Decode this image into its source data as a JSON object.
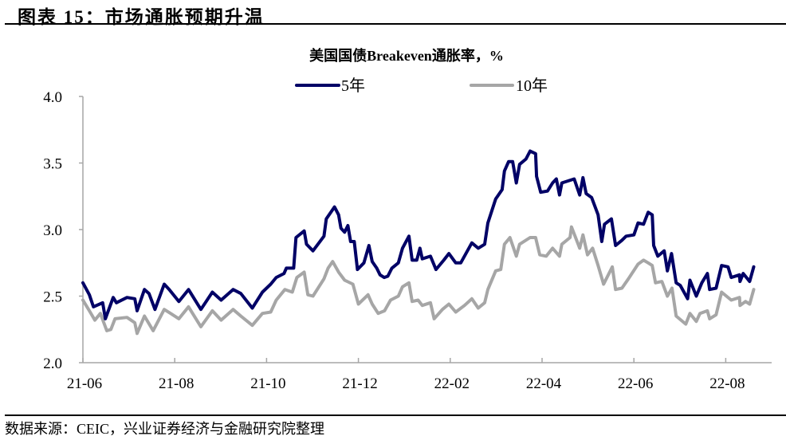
{
  "figure": {
    "title": "图表 15：市场通胀预期升温",
    "source": "数据来源：CEIC，兴业证券经济与金融研究院整理"
  },
  "chart_data": {
    "type": "line",
    "title": "美国国债Breakeven通胀率，%",
    "xlabel": "",
    "ylabel": "",
    "x_unit": "months since 2021-06",
    "xlim": [
      0,
      15
    ],
    "ylim": [
      2.0,
      4.0
    ],
    "yticks": [
      "2.0",
      "2.5",
      "3.0",
      "3.5",
      "4.0"
    ],
    "ytick_values": [
      2.0,
      2.5,
      3.0,
      3.5,
      4.0
    ],
    "xticks": [
      "21-06",
      "21-08",
      "21-10",
      "21-12",
      "22-02",
      "22-04",
      "22-06",
      "22-08"
    ],
    "xtick_values": [
      0,
      2,
      4,
      6,
      8,
      10,
      12,
      14
    ],
    "grid": false,
    "legend_placement": "top-center",
    "series": [
      {
        "name": "5年",
        "color": "#000066",
        "points": [
          [
            0,
            2.6
          ],
          [
            0.14,
            2.51
          ],
          [
            0.23,
            2.42
          ],
          [
            0.43,
            2.45
          ],
          [
            0.49,
            2.33
          ],
          [
            0.66,
            2.49
          ],
          [
            0.73,
            2.45
          ],
          [
            0.96,
            2.49
          ],
          [
            1.13,
            2.48
          ],
          [
            1.18,
            2.39
          ],
          [
            1.34,
            2.55
          ],
          [
            1.44,
            2.52
          ],
          [
            1.57,
            2.4
          ],
          [
            1.77,
            2.59
          ],
          [
            1.88,
            2.55
          ],
          [
            2.09,
            2.46
          ],
          [
            2.3,
            2.55
          ],
          [
            2.57,
            2.4
          ],
          [
            2.82,
            2.53
          ],
          [
            3.01,
            2.47
          ],
          [
            3.27,
            2.55
          ],
          [
            3.44,
            2.52
          ],
          [
            3.69,
            2.41
          ],
          [
            3.91,
            2.53
          ],
          [
            4.09,
            2.59
          ],
          [
            4.21,
            2.64
          ],
          [
            4.38,
            2.67
          ],
          [
            4.43,
            2.71
          ],
          [
            4.59,
            2.71
          ],
          [
            4.64,
            2.94
          ],
          [
            4.82,
            2.99
          ],
          [
            4.87,
            2.89
          ],
          [
            5.01,
            2.84
          ],
          [
            5.25,
            2.95
          ],
          [
            5.3,
            3.08
          ],
          [
            5.48,
            3.17
          ],
          [
            5.57,
            3.11
          ],
          [
            5.62,
            3.01
          ],
          [
            5.7,
            2.98
          ],
          [
            5.77,
            3.03
          ],
          [
            5.83,
            2.91
          ],
          [
            5.91,
            2.91
          ],
          [
            5.98,
            2.7
          ],
          [
            6.12,
            2.75
          ],
          [
            6.23,
            2.88
          ],
          [
            6.3,
            2.76
          ],
          [
            6.4,
            2.71
          ],
          [
            6.47,
            2.66
          ],
          [
            6.56,
            2.64
          ],
          [
            6.64,
            2.65
          ],
          [
            6.73,
            2.71
          ],
          [
            6.87,
            2.75
          ],
          [
            6.96,
            2.86
          ],
          [
            7.1,
            2.95
          ],
          [
            7.17,
            2.77
          ],
          [
            7.27,
            2.77
          ],
          [
            7.34,
            2.86
          ],
          [
            7.39,
            2.78
          ],
          [
            7.57,
            2.8
          ],
          [
            7.69,
            2.7
          ],
          [
            7.86,
            2.77
          ],
          [
            7.97,
            2.82
          ],
          [
            8.12,
            2.75
          ],
          [
            8.23,
            2.75
          ],
          [
            8.47,
            2.9
          ],
          [
            8.61,
            2.86
          ],
          [
            8.75,
            2.89
          ],
          [
            8.82,
            3.05
          ],
          [
            8.99,
            3.23
          ],
          [
            9.13,
            3.3
          ],
          [
            9.18,
            3.44
          ],
          [
            9.27,
            3.51
          ],
          [
            9.36,
            3.51
          ],
          [
            9.44,
            3.35
          ],
          [
            9.51,
            3.49
          ],
          [
            9.65,
            3.53
          ],
          [
            9.74,
            3.59
          ],
          [
            9.86,
            3.57
          ],
          [
            9.88,
            3.4
          ],
          [
            9.97,
            3.28
          ],
          [
            10.12,
            3.29
          ],
          [
            10.23,
            3.35
          ],
          [
            10.31,
            3.38
          ],
          [
            10.38,
            3.26
          ],
          [
            10.43,
            3.35
          ],
          [
            10.7,
            3.38
          ],
          [
            10.82,
            3.26
          ],
          [
            10.89,
            3.39
          ],
          [
            10.96,
            3.27
          ],
          [
            11.08,
            3.24
          ],
          [
            11.22,
            3.11
          ],
          [
            11.3,
            2.91
          ],
          [
            11.36,
            3.04
          ],
          [
            11.51,
            3.08
          ],
          [
            11.6,
            2.88
          ],
          [
            11.74,
            2.92
          ],
          [
            11.83,
            2.95
          ],
          [
            12.0,
            2.96
          ],
          [
            12.09,
            3.05
          ],
          [
            12.21,
            3.04
          ],
          [
            12.31,
            3.13
          ],
          [
            12.4,
            3.11
          ],
          [
            12.43,
            2.88
          ],
          [
            12.52,
            2.8
          ],
          [
            12.66,
            2.84
          ],
          [
            12.73,
            2.69
          ],
          [
            12.82,
            2.82
          ],
          [
            12.92,
            2.6
          ],
          [
            13.01,
            2.58
          ],
          [
            13.17,
            2.48
          ],
          [
            13.22,
            2.62
          ],
          [
            13.36,
            2.5
          ],
          [
            13.48,
            2.6
          ],
          [
            13.6,
            2.67
          ],
          [
            13.65,
            2.55
          ],
          [
            13.79,
            2.56
          ],
          [
            13.91,
            2.73
          ],
          [
            14.05,
            2.72
          ],
          [
            14.12,
            2.64
          ],
          [
            14.3,
            2.66
          ],
          [
            14.31,
            2.61
          ],
          [
            14.38,
            2.67
          ],
          [
            14.52,
            2.61
          ],
          [
            14.61,
            2.72
          ]
        ]
      },
      {
        "name": "10年",
        "color": "#a6a6a6",
        "points": [
          [
            0,
            2.47
          ],
          [
            0.14,
            2.39
          ],
          [
            0.26,
            2.32
          ],
          [
            0.38,
            2.37
          ],
          [
            0.52,
            2.24
          ],
          [
            0.61,
            2.25
          ],
          [
            0.7,
            2.33
          ],
          [
            0.96,
            2.34
          ],
          [
            1.13,
            2.3
          ],
          [
            1.18,
            2.22
          ],
          [
            1.34,
            2.35
          ],
          [
            1.53,
            2.24
          ],
          [
            1.77,
            2.4
          ],
          [
            1.91,
            2.37
          ],
          [
            2.09,
            2.33
          ],
          [
            2.3,
            2.42
          ],
          [
            2.57,
            2.27
          ],
          [
            2.82,
            2.39
          ],
          [
            3.01,
            2.32
          ],
          [
            3.27,
            2.4
          ],
          [
            3.44,
            2.35
          ],
          [
            3.69,
            2.28
          ],
          [
            3.91,
            2.37
          ],
          [
            4.09,
            2.38
          ],
          [
            4.21,
            2.47
          ],
          [
            4.4,
            2.55
          ],
          [
            4.56,
            2.53
          ],
          [
            4.66,
            2.64
          ],
          [
            4.82,
            2.68
          ],
          [
            4.9,
            2.51
          ],
          [
            5.01,
            2.5
          ],
          [
            5.25,
            2.63
          ],
          [
            5.34,
            2.71
          ],
          [
            5.44,
            2.76
          ],
          [
            5.57,
            2.68
          ],
          [
            5.7,
            2.62
          ],
          [
            5.88,
            2.59
          ],
          [
            6.0,
            2.44
          ],
          [
            6.21,
            2.51
          ],
          [
            6.3,
            2.44
          ],
          [
            6.43,
            2.37
          ],
          [
            6.57,
            2.39
          ],
          [
            6.7,
            2.47
          ],
          [
            6.87,
            2.5
          ],
          [
            6.96,
            2.57
          ],
          [
            7.1,
            2.6
          ],
          [
            7.17,
            2.46
          ],
          [
            7.3,
            2.47
          ],
          [
            7.39,
            2.43
          ],
          [
            7.57,
            2.45
          ],
          [
            7.65,
            2.33
          ],
          [
            7.83,
            2.4
          ],
          [
            7.97,
            2.44
          ],
          [
            8.12,
            2.38
          ],
          [
            8.31,
            2.43
          ],
          [
            8.47,
            2.48
          ],
          [
            8.61,
            2.41
          ],
          [
            8.75,
            2.45
          ],
          [
            8.82,
            2.55
          ],
          [
            8.99,
            2.69
          ],
          [
            9.1,
            2.7
          ],
          [
            9.18,
            2.89
          ],
          [
            9.3,
            2.94
          ],
          [
            9.44,
            2.8
          ],
          [
            9.51,
            2.89
          ],
          [
            9.74,
            2.94
          ],
          [
            9.86,
            2.94
          ],
          [
            9.95,
            2.81
          ],
          [
            10.09,
            2.8
          ],
          [
            10.23,
            2.86
          ],
          [
            10.38,
            2.8
          ],
          [
            10.43,
            2.89
          ],
          [
            10.61,
            2.94
          ],
          [
            10.64,
            3.02
          ],
          [
            10.82,
            2.86
          ],
          [
            10.89,
            2.96
          ],
          [
            10.99,
            2.81
          ],
          [
            11.1,
            2.86
          ],
          [
            11.22,
            2.73
          ],
          [
            11.34,
            2.59
          ],
          [
            11.53,
            2.72
          ],
          [
            11.6,
            2.55
          ],
          [
            11.74,
            2.56
          ],
          [
            11.88,
            2.63
          ],
          [
            12.09,
            2.74
          ],
          [
            12.21,
            2.77
          ],
          [
            12.31,
            2.75
          ],
          [
            12.4,
            2.73
          ],
          [
            12.47,
            2.6
          ],
          [
            12.61,
            2.61
          ],
          [
            12.73,
            2.5
          ],
          [
            12.83,
            2.56
          ],
          [
            12.92,
            2.35
          ],
          [
            13.13,
            2.29
          ],
          [
            13.22,
            2.37
          ],
          [
            13.36,
            2.31
          ],
          [
            13.44,
            2.37
          ],
          [
            13.6,
            2.39
          ],
          [
            13.65,
            2.33
          ],
          [
            13.79,
            2.36
          ],
          [
            13.91,
            2.53
          ],
          [
            14.12,
            2.47
          ],
          [
            14.3,
            2.49
          ],
          [
            14.31,
            2.43
          ],
          [
            14.43,
            2.46
          ],
          [
            14.52,
            2.44
          ],
          [
            14.61,
            2.55
          ]
        ]
      }
    ]
  }
}
